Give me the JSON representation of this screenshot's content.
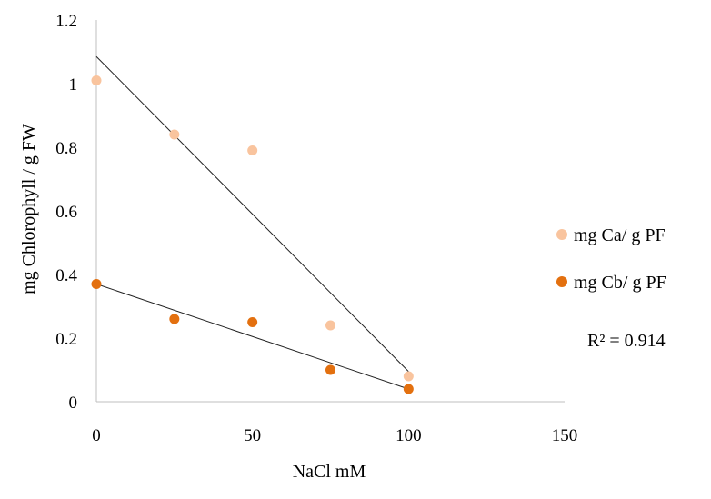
{
  "chart_data": {
    "type": "scatter",
    "xlabel": "NaCl mM",
    "ylabel": "mg Chlorophyll / g FW",
    "xlim": [
      0,
      150
    ],
    "ylim": [
      0,
      1.2
    ],
    "x_ticks": [
      "0",
      "50",
      "100",
      "150"
    ],
    "y_ticks": [
      "0",
      "0.2",
      "0.4",
      "0.6",
      "0.8",
      "1",
      "1.2"
    ],
    "grid": false,
    "legend_position": "right",
    "series": [
      {
        "name": "mg Ca/ g PF",
        "color": "#f9c49e",
        "x": [
          0,
          25,
          50,
          75,
          100
        ],
        "y": [
          1.01,
          0.84,
          0.79,
          0.24,
          0.08
        ],
        "trendline": {
          "type": "linear",
          "from": [
            0,
            1.085
          ],
          "to": [
            100,
            0.095
          ]
        }
      },
      {
        "name": "mg Cb/ g PF",
        "color": "#e3700f",
        "x": [
          0,
          25,
          50,
          75,
          100
        ],
        "y": [
          0.37,
          0.26,
          0.25,
          0.1,
          0.04
        ],
        "trendline": {
          "type": "linear",
          "from": [
            0,
            0.37
          ],
          "to": [
            100,
            0.04
          ]
        }
      }
    ],
    "annotation": "R² = 0.914"
  }
}
